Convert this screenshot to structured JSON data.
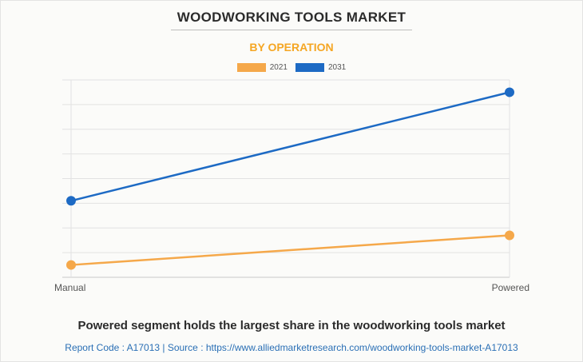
{
  "chart_data": {
    "type": "line",
    "title": "WOODWORKING TOOLS MARKET",
    "subtitle": "BY OPERATION",
    "categories": [
      "Manual",
      "Powered"
    ],
    "series": [
      {
        "name": "2021",
        "color": "#f5a84a",
        "values": [
          0.5,
          1.7
        ]
      },
      {
        "name": "2031",
        "color": "#1d6ac4",
        "values": [
          3.1,
          7.5
        ]
      }
    ],
    "ylim": [
      0,
      8
    ],
    "grid": true,
    "legend_position": "top"
  },
  "footer": {
    "caption": "Powered segment holds the largest share in the woodworking tools market",
    "source": "Report Code : A17013  |  Source : https://www.alliedmarketresearch.com/woodworking-tools-market-A17013"
  }
}
